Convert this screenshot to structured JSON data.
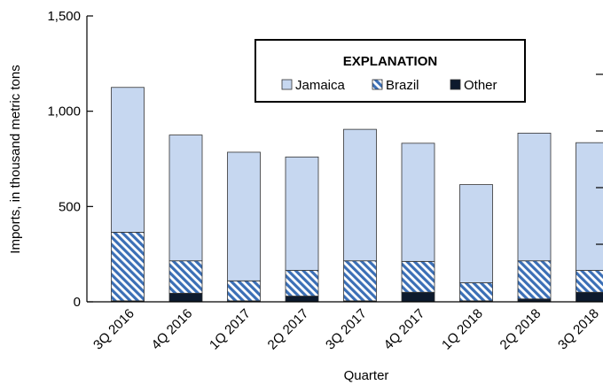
{
  "chart_data": {
    "type": "bar",
    "stacked": true,
    "categories": [
      "3Q 2016",
      "4Q 2016",
      "1Q 2017",
      "2Q 2017",
      "3Q 2017",
      "4Q 2017",
      "1Q 2018",
      "2Q 2018",
      "3Q 2018"
    ],
    "series": [
      {
        "name": "Other",
        "color": "#0d1a2d",
        "values": [
          5,
          45,
          5,
          30,
          5,
          50,
          5,
          15,
          50
        ]
      },
      {
        "name": "Brazil",
        "color": "#3b6fb6",
        "values": [
          360,
          170,
          105,
          135,
          210,
          162,
          95,
          200,
          115
        ]
      },
      {
        "name": "Jamaica",
        "color": "#c6d7f0",
        "values": [
          760,
          660,
          675,
          595,
          690,
          620,
          515,
          670,
          670
        ]
      }
    ],
    "xlabel": "Quarter",
    "ylabel": "Imports, in thousand metric tons",
    "ylim": [
      0,
      1500
    ],
    "yticks": [
      "0",
      "500",
      "1,000",
      "1,500"
    ],
    "grid": false,
    "legend": {
      "title": "EXPLANATION",
      "placement": "top-center",
      "order": [
        "Jamaica",
        "Brazil",
        "Other"
      ]
    }
  }
}
